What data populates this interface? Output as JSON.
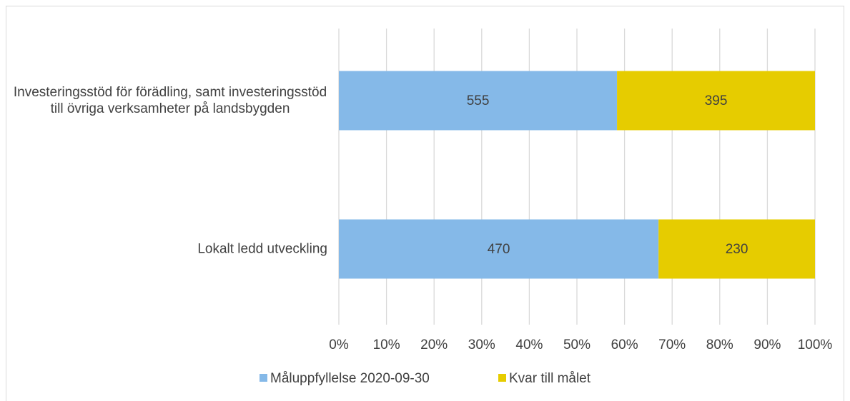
{
  "chart_data": {
    "type": "bar",
    "orientation": "horizontal",
    "stacked": "percent",
    "categories": [
      "Investeringsstöd för förädling, samt investeringsstöd till övriga verksamheter på landsbygden",
      "Lokalt ledd utveckling"
    ],
    "series": [
      {
        "name": "Måluppfyllelse 2020-09-30",
        "color": "#85b9e8",
        "values": [
          555,
          470
        ]
      },
      {
        "name": "Kvar till målet",
        "color": "#e6cc00",
        "values": [
          395,
          230
        ]
      }
    ],
    "xlim": [
      0,
      100
    ],
    "xticks": [
      {
        "value": 0,
        "label": "0%"
      },
      {
        "value": 10,
        "label": "10%"
      },
      {
        "value": 20,
        "label": "20%"
      },
      {
        "value": 30,
        "label": "30%"
      },
      {
        "value": 40,
        "label": "40%"
      },
      {
        "value": 50,
        "label": "50%"
      },
      {
        "value": 60,
        "label": "60%"
      },
      {
        "value": 70,
        "label": "70%"
      },
      {
        "value": 80,
        "label": "80%"
      },
      {
        "value": 90,
        "label": "90%"
      },
      {
        "value": 100,
        "label": "100%"
      }
    ],
    "grid": true,
    "legend": "bottom"
  }
}
